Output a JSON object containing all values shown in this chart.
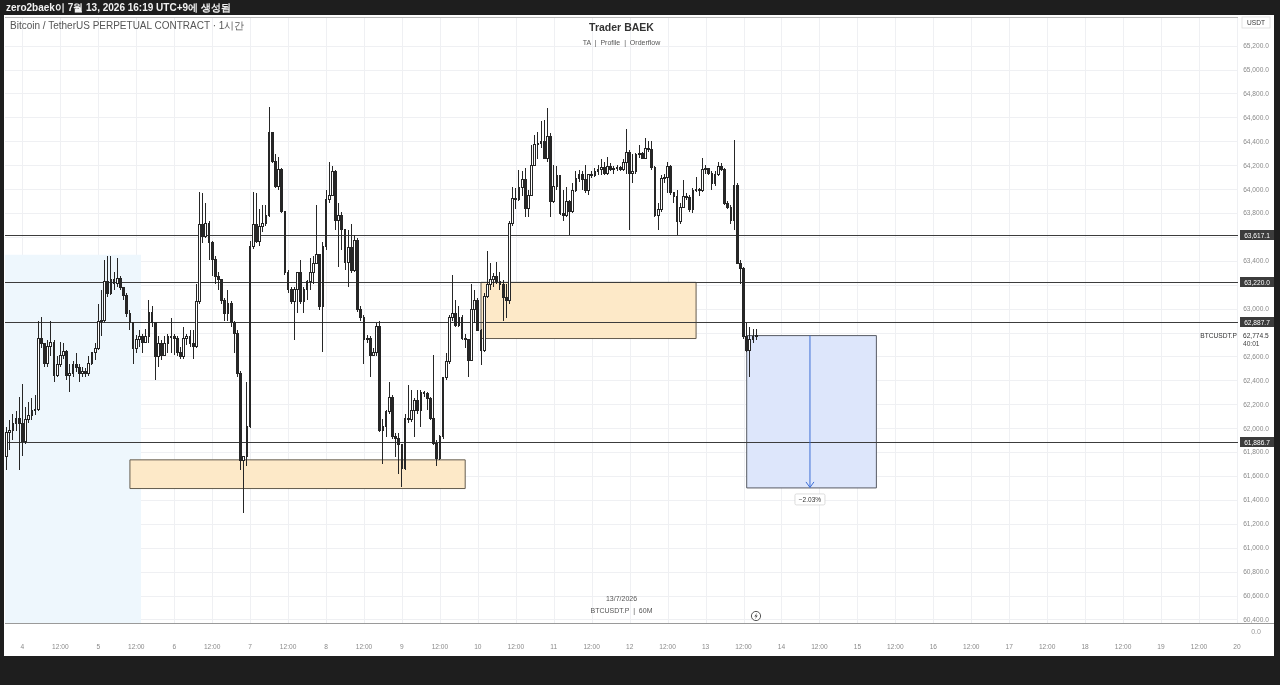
{
  "chart_data": {
    "type": "candlestick",
    "title": "Trader BAEK",
    "subtitle": "TA  |  Profile  |  Orderflow",
    "ylabel": "USDT",
    "color": "#262626",
    "grid": true,
    "xlim": [
      "2026-07-03T18:30",
      "2026-07-20T00:20"
    ],
    "ylim": [
      60370,
      65440
    ],
    "xticks": [
      {
        "value": "2026-07-04T00:00",
        "label": "4"
      },
      {
        "value": "2026-07-04T12:00",
        "label": "12:00"
      },
      {
        "value": "2026-07-05T00:00",
        "label": "5"
      },
      {
        "value": "2026-07-05T12:00",
        "label": "12:00"
      },
      {
        "value": "2026-07-06T00:00",
        "label": "6"
      },
      {
        "value": "2026-07-06T12:00",
        "label": "12:00"
      },
      {
        "value": "2026-07-07T00:00",
        "label": "7"
      },
      {
        "value": "2026-07-07T12:00",
        "label": "12:00"
      },
      {
        "value": "2026-07-08T00:00",
        "label": "8"
      },
      {
        "value": "2026-07-08T12:00",
        "label": "12:00"
      },
      {
        "value": "2026-07-09T00:00",
        "label": "9"
      },
      {
        "value": "2026-07-09T12:00",
        "label": "12:00"
      },
      {
        "value": "2026-07-10T00:00",
        "label": "10"
      },
      {
        "value": "2026-07-10T12:00",
        "label": "12:00"
      },
      {
        "value": "2026-07-11T00:00",
        "label": "11"
      },
      {
        "value": "2026-07-11T12:00",
        "label": "12:00"
      },
      {
        "value": "2026-07-12T00:00",
        "label": "12"
      },
      {
        "value": "2026-07-12T12:00",
        "label": "12:00"
      },
      {
        "value": "2026-07-13T00:00",
        "label": "13"
      },
      {
        "value": "2026-07-13T12:00",
        "label": "12:00"
      },
      {
        "value": "2026-07-14T00:00",
        "label": "14"
      },
      {
        "value": "2026-07-14T12:00",
        "label": "12:00"
      },
      {
        "value": "2026-07-15T00:00",
        "label": "15"
      },
      {
        "value": "2026-07-15T12:00",
        "label": "12:00"
      },
      {
        "value": "2026-07-16T00:00",
        "label": "16"
      },
      {
        "value": "2026-07-16T12:00",
        "label": "12:00"
      },
      {
        "value": "2026-07-17T00:00",
        "label": "17"
      },
      {
        "value": "2026-07-17T12:00",
        "label": "12:00"
      },
      {
        "value": "2026-07-18T00:00",
        "label": "18"
      },
      {
        "value": "2026-07-18T12:00",
        "label": "12:00"
      },
      {
        "value": "2026-07-19T00:00",
        "label": "19"
      },
      {
        "value": "2026-07-19T12:00",
        "label": "12:00"
      },
      {
        "value": "2026-07-20T00:00",
        "label": "20"
      }
    ],
    "yticks": [
      {
        "value": 60400,
        "label": "60,400.0"
      },
      {
        "value": 60600,
        "label": "60,600.0"
      },
      {
        "value": 60800,
        "label": "60,800.0"
      },
      {
        "value": 61000,
        "label": "61,000.0"
      },
      {
        "value": 61200,
        "label": "61,200.0"
      },
      {
        "value": 61400,
        "label": "61,400.0"
      },
      {
        "value": 61600,
        "label": "61,600.0"
      },
      {
        "value": 61800,
        "label": "61,800.0"
      },
      {
        "value": 62000,
        "label": "62,000.0"
      },
      {
        "value": 62200,
        "label": "62,200.0"
      },
      {
        "value": 62400,
        "label": "62,400.0"
      },
      {
        "value": 62600,
        "label": "62,600.0"
      },
      {
        "value": 62800,
        "label": null
      },
      {
        "value": 63000,
        "label": "63,000.0"
      },
      {
        "value": 63200,
        "label": null
      },
      {
        "value": 63400,
        "label": "63,400.0"
      },
      {
        "value": 63600,
        "label": null
      },
      {
        "value": 63800,
        "label": "63,800.0"
      },
      {
        "value": 64000,
        "label": "64,000.0"
      },
      {
        "value": 64200,
        "label": "64,200.0"
      },
      {
        "value": 64400,
        "label": "64,400.0"
      },
      {
        "value": 64600,
        "label": "64,600.0"
      },
      {
        "value": 64800,
        "label": "64,800.0"
      },
      {
        "value": 65000,
        "label": "65,000.0"
      },
      {
        "value": 65200,
        "label": "65,200.0"
      }
    ],
    "ref_lines": [
      {
        "axis": "y",
        "value": 63617.1,
        "label": "63,617.1",
        "color": "#3c3c3c"
      },
      {
        "axis": "y",
        "value": 63220.0,
        "label": "63,220.0",
        "color": "#3c3c3c"
      },
      {
        "axis": "y",
        "value": 62887.7,
        "label": "62,887.7",
        "color": "#3c3c3c"
      },
      {
        "axis": "y",
        "value": 61886.7,
        "label": "61,886.7",
        "color": "#3c3c3c"
      }
    ],
    "series": [
      {
        "type": "line",
        "x": [
          "2026-07-03T18:30",
          "2026-07-05T13:30"
        ],
        "values": [
          null,
          null
        ],
        "lower": [
          60370,
          60370
        ],
        "upper": [
          63450,
          63450
        ],
        "color": "#eef7fd"
      },
      {
        "type": "line",
        "x": [
          "2026-07-05T10:00",
          "2026-07-09T20:00"
        ],
        "values": [
          null,
          null
        ],
        "lower": [
          61495,
          61495
        ],
        "upper": [
          61735,
          61735
        ],
        "color": "#fde9c8",
        "line_style": "solid"
      },
      {
        "type": "line",
        "x": [
          "2026-07-10T01:00",
          "2026-07-12T21:00"
        ],
        "values": [
          null,
          null
        ],
        "lower": [
          62750,
          62750
        ],
        "upper": [
          63220,
          63220
        ],
        "color": "#fde9c8",
        "line_style": "solid"
      },
      {
        "type": "line",
        "x": [
          "2026-07-13T13:00",
          "2026-07-15T06:00"
        ],
        "values": [
          null,
          null
        ],
        "lower": [
          61500,
          61500
        ],
        "upper": [
          62774.5,
          62774.5
        ],
        "color": "#dde6fb",
        "line_style": "solid"
      }
    ],
    "annotations": [
      "zero2baek이 7월 13, 2026 16:19 UTC+9에 생성됨",
      "Bitcoin / TetherUS PERPETUAL CONTRACT · 1시간",
      "13/7/2026",
      "BTCUSDT.P  |  60M",
      "0.0",
      "BTCUSDT.P",
      "62,774.5",
      "40:01",
      {
        "text": "−2.03%",
        "x": "2026-07-14T09:00",
        "y": 61500
      }
    ],
    "x": [
      "2026-07-03T19:00",
      "2026-07-03T20:00",
      "2026-07-03T21:00",
      "2026-07-03T22:00",
      "2026-07-03T23:00",
      "2026-07-04T00:00",
      "2026-07-04T01:00",
      "2026-07-04T02:00",
      "2026-07-04T03:00",
      "2026-07-04T04:00",
      "2026-07-04T05:00",
      "2026-07-04T06:00",
      "2026-07-04T07:00",
      "2026-07-04T08:00",
      "2026-07-04T09:00",
      "2026-07-04T10:00",
      "2026-07-04T11:00",
      "2026-07-04T12:00",
      "2026-07-04T13:00",
      "2026-07-04T14:00",
      "2026-07-04T15:00",
      "2026-07-04T16:00",
      "2026-07-04T17:00",
      "2026-07-04T18:00",
      "2026-07-04T19:00",
      "2026-07-04T20:00",
      "2026-07-04T21:00",
      "2026-07-04T22:00",
      "2026-07-04T23:00",
      "2026-07-05T00:00",
      "2026-07-05T01:00",
      "2026-07-05T02:00",
      "2026-07-05T03:00",
      "2026-07-05T04:00",
      "2026-07-05T05:00",
      "2026-07-05T06:00",
      "2026-07-05T07:00",
      "2026-07-05T08:00",
      "2026-07-05T09:00",
      "2026-07-05T10:00",
      "2026-07-05T11:00",
      "2026-07-05T12:00",
      "2026-07-05T13:00",
      "2026-07-05T14:00",
      "2026-07-05T15:00",
      "2026-07-05T16:00",
      "2026-07-05T17:00",
      "2026-07-05T18:00",
      "2026-07-05T19:00",
      "2026-07-05T20:00",
      "2026-07-05T21:00",
      "2026-07-05T22:00",
      "2026-07-05T23:00",
      "2026-07-06T00:00",
      "2026-07-06T01:00",
      "2026-07-06T02:00",
      "2026-07-06T03:00",
      "2026-07-06T04:00",
      "2026-07-06T05:00",
      "2026-07-06T06:00",
      "2026-07-06T07:00",
      "2026-07-06T08:00",
      "2026-07-06T09:00",
      "2026-07-06T10:00",
      "2026-07-06T11:00",
      "2026-07-06T12:00",
      "2026-07-06T13:00",
      "2026-07-06T14:00",
      "2026-07-06T15:00",
      "2026-07-06T16:00",
      "2026-07-06T17:00",
      "2026-07-06T18:00",
      "2026-07-06T19:00",
      "2026-07-06T20:00",
      "2026-07-06T21:00",
      "2026-07-06T22:00",
      "2026-07-06T23:00",
      "2026-07-07T00:00",
      "2026-07-07T01:00",
      "2026-07-07T02:00",
      "2026-07-07T03:00",
      "2026-07-07T04:00",
      "2026-07-07T05:00",
      "2026-07-07T06:00",
      "2026-07-07T07:00",
      "2026-07-07T08:00",
      "2026-07-07T09:00",
      "2026-07-07T10:00",
      "2026-07-07T11:00",
      "2026-07-07T12:00",
      "2026-07-07T13:00",
      "2026-07-07T14:00",
      "2026-07-07T15:00",
      "2026-07-07T16:00",
      "2026-07-07T17:00",
      "2026-07-07T18:00",
      "2026-07-07T19:00",
      "2026-07-07T20:00",
      "2026-07-07T21:00",
      "2026-07-07T22:00",
      "2026-07-07T23:00",
      "2026-07-08T00:00",
      "2026-07-08T01:00",
      "2026-07-08T02:00",
      "2026-07-08T03:00",
      "2026-07-08T04:00",
      "2026-07-08T05:00",
      "2026-07-08T06:00",
      "2026-07-08T07:00",
      "2026-07-08T08:00",
      "2026-07-08T09:00",
      "2026-07-08T10:00",
      "2026-07-08T11:00",
      "2026-07-08T12:00",
      "2026-07-08T13:00",
      "2026-07-08T14:00",
      "2026-07-08T15:00",
      "2026-07-08T16:00",
      "2026-07-08T17:00",
      "2026-07-08T18:00",
      "2026-07-08T19:00",
      "2026-07-08T20:00",
      "2026-07-08T21:00",
      "2026-07-08T22:00",
      "2026-07-08T23:00",
      "2026-07-09T00:00",
      "2026-07-09T01:00",
      "2026-07-09T02:00",
      "2026-07-09T03:00",
      "2026-07-09T04:00",
      "2026-07-09T05:00",
      "2026-07-09T06:00",
      "2026-07-09T07:00",
      "2026-07-09T08:00",
      "2026-07-09T09:00",
      "2026-07-09T10:00",
      "2026-07-09T11:00",
      "2026-07-09T12:00",
      "2026-07-09T13:00",
      "2026-07-09T14:00",
      "2026-07-09T15:00",
      "2026-07-09T16:00",
      "2026-07-09T17:00",
      "2026-07-09T18:00",
      "2026-07-09T19:00",
      "2026-07-09T20:00",
      "2026-07-09T21:00",
      "2026-07-09T22:00",
      "2026-07-09T23:00",
      "2026-07-10T00:00",
      "2026-07-10T01:00",
      "2026-07-10T02:00",
      "2026-07-10T03:00",
      "2026-07-10T04:00",
      "2026-07-10T05:00",
      "2026-07-10T06:00",
      "2026-07-10T07:00",
      "2026-07-10T08:00",
      "2026-07-10T09:00",
      "2026-07-10T10:00",
      "2026-07-10T11:00",
      "2026-07-10T12:00",
      "2026-07-10T13:00",
      "2026-07-10T14:00",
      "2026-07-10T15:00",
      "2026-07-10T16:00",
      "2026-07-10T17:00",
      "2026-07-10T18:00",
      "2026-07-10T19:00",
      "2026-07-10T20:00",
      "2026-07-10T21:00",
      "2026-07-10T22:00",
      "2026-07-10T23:00",
      "2026-07-11T00:00",
      "2026-07-11T01:00",
      "2026-07-11T02:00",
      "2026-07-11T03:00",
      "2026-07-11T04:00",
      "2026-07-11T05:00",
      "2026-07-11T06:00",
      "2026-07-11T07:00",
      "2026-07-11T08:00",
      "2026-07-11T09:00",
      "2026-07-11T10:00",
      "2026-07-11T11:00",
      "2026-07-11T12:00",
      "2026-07-11T13:00",
      "2026-07-11T14:00",
      "2026-07-11T15:00",
      "2026-07-11T16:00",
      "2026-07-11T17:00",
      "2026-07-11T18:00",
      "2026-07-11T19:00",
      "2026-07-11T20:00",
      "2026-07-11T21:00",
      "2026-07-11T22:00",
      "2026-07-11T23:00",
      "2026-07-12T00:00",
      "2026-07-12T01:00",
      "2026-07-12T02:00",
      "2026-07-12T03:00",
      "2026-07-12T04:00",
      "2026-07-12T05:00",
      "2026-07-12T06:00",
      "2026-07-12T07:00",
      "2026-07-12T08:00",
      "2026-07-12T09:00",
      "2026-07-12T10:00",
      "2026-07-12T11:00",
      "2026-07-12T12:00",
      "2026-07-12T13:00",
      "2026-07-12T14:00",
      "2026-07-12T15:00",
      "2026-07-12T16:00",
      "2026-07-12T17:00",
      "2026-07-12T18:00",
      "2026-07-12T19:00",
      "2026-07-12T20:00",
      "2026-07-12T21:00",
      "2026-07-12T22:00",
      "2026-07-12T23:00",
      "2026-07-13T00:00",
      "2026-07-13T01:00",
      "2026-07-13T02:00",
      "2026-07-13T03:00",
      "2026-07-13T04:00",
      "2026-07-13T05:00",
      "2026-07-13T06:00",
      "2026-07-13T07:00",
      "2026-07-13T08:00",
      "2026-07-13T09:00",
      "2026-07-13T10:00",
      "2026-07-13T11:00",
      "2026-07-13T12:00",
      "2026-07-13T13:00",
      "2026-07-13T14:00",
      "2026-07-13T15:00",
      "2026-07-13T16:00"
    ],
    "ohlc": [
      [
        61760,
        62010,
        61650,
        61960
      ],
      [
        61960,
        62070,
        61820,
        61980
      ],
      [
        61980,
        62120,
        61900,
        62040
      ],
      [
        62040,
        62140,
        61980,
        62080
      ],
      [
        62080,
        62260,
        61650,
        62040
      ],
      [
        62040,
        62370,
        61770,
        61890
      ],
      [
        61890,
        62180,
        61870,
        62070
      ],
      [
        62070,
        62220,
        62040,
        62110
      ],
      [
        62110,
        62250,
        62070,
        62150
      ],
      [
        62150,
        62280,
        62110,
        62160
      ],
      [
        62160,
        62900,
        62140,
        62750
      ],
      [
        62750,
        62930,
        62670,
        62710
      ],
      [
        62710,
        62710,
        62510,
        62540
      ],
      [
        62540,
        62740,
        62510,
        62680
      ],
      [
        62680,
        62900,
        62600,
        62720
      ],
      [
        62720,
        62740,
        62390,
        62440
      ],
      [
        62440,
        62600,
        62430,
        62530
      ],
      [
        62530,
        62720,
        62510,
        62610
      ],
      [
        62610,
        62710,
        62580,
        62640
      ],
      [
        62640,
        62650,
        62400,
        62440
      ],
      [
        62440,
        62540,
        62300,
        62460
      ],
      [
        62460,
        62560,
        62430,
        62530
      ],
      [
        62530,
        62630,
        62470,
        62510
      ],
      [
        62510,
        62540,
        62390,
        62460
      ],
      [
        62460,
        62510,
        62430,
        62470
      ],
      [
        62470,
        62500,
        62430,
        62460
      ],
      [
        62460,
        62600,
        62440,
        62540
      ],
      [
        62540,
        62640,
        62530,
        62630
      ],
      [
        62630,
        62710,
        62570,
        62670
      ],
      [
        62670,
        63040,
        62650,
        62890
      ],
      [
        62890,
        63160,
        62770,
        62900
      ],
      [
        62900,
        63410,
        62880,
        63230
      ],
      [
        63230,
        63440,
        63100,
        63130
      ],
      [
        63130,
        63440,
        63110,
        63240
      ],
      [
        63240,
        63310,
        63160,
        63210
      ],
      [
        63210,
        63420,
        63180,
        63250
      ],
      [
        63250,
        63270,
        63160,
        63180
      ],
      [
        63180,
        63180,
        63070,
        63110
      ],
      [
        63110,
        63130,
        62930,
        62960
      ],
      [
        62960,
        62990,
        62820,
        62880
      ],
      [
        62880,
        62880,
        62540,
        62670
      ],
      [
        62670,
        62780,
        62630,
        62740
      ],
      [
        62740,
        62820,
        62680,
        62770
      ],
      [
        62770,
        62790,
        62630,
        62720
      ],
      [
        62720,
        62830,
        62710,
        62770
      ],
      [
        62770,
        63070,
        62710,
        62970
      ],
      [
        62970,
        63020,
        62850,
        62880
      ],
      [
        62880,
        62890,
        62400,
        62600
      ],
      [
        62600,
        62770,
        62510,
        62710
      ],
      [
        62710,
        62740,
        62570,
        62610
      ],
      [
        62610,
        62770,
        62600,
        62710
      ],
      [
        62710,
        62790,
        62630,
        62770
      ],
      [
        62770,
        62920,
        62630,
        62770
      ],
      [
        62770,
        62790,
        62610,
        62750
      ],
      [
        62750,
        62770,
        62600,
        62630
      ],
      [
        62630,
        62680,
        62580,
        62600
      ],
      [
        62600,
        62850,
        62580,
        62750
      ],
      [
        62750,
        62790,
        62700,
        62770
      ],
      [
        62770,
        62820,
        62680,
        62710
      ],
      [
        62710,
        62820,
        62580,
        62680
      ],
      [
        62680,
        63210,
        62670,
        63060
      ],
      [
        63060,
        63980,
        63040,
        63700
      ],
      [
        63700,
        63970,
        63550,
        63600
      ],
      [
        63600,
        63880,
        63590,
        63710
      ],
      [
        63710,
        63730,
        63410,
        63550
      ],
      [
        63550,
        63570,
        63270,
        63410
      ],
      [
        63410,
        63440,
        63210,
        63270
      ],
      [
        63270,
        63310,
        63160,
        63240
      ],
      [
        63240,
        63250,
        63040,
        63070
      ],
      [
        63070,
        63090,
        62900,
        62960
      ],
      [
        62960,
        63160,
        62900,
        63040
      ],
      [
        63040,
        63060,
        62850,
        62880
      ],
      [
        62880,
        62900,
        62630,
        62790
      ],
      [
        62790,
        62820,
        62430,
        62460
      ],
      [
        62460,
        62480,
        61650,
        61730
      ],
      [
        61730,
        61760,
        61290,
        61760
      ],
      [
        61760,
        62390,
        61680,
        62010
      ],
      [
        62010,
        63570,
        62000,
        63520
      ],
      [
        63520,
        63980,
        63500,
        63700
      ],
      [
        63700,
        63970,
        63550,
        63560
      ],
      [
        63560,
        63830,
        63520,
        63690
      ],
      [
        63690,
        63870,
        63640,
        63710
      ],
      [
        63710,
        63870,
        63690,
        63780
      ],
      [
        63780,
        64690,
        63770,
        64470
      ],
      [
        64470,
        64480,
        64220,
        64230
      ],
      [
        64230,
        64290,
        64010,
        64020
      ],
      [
        64020,
        64270,
        63990,
        64160
      ],
      [
        64160,
        64180,
        63800,
        63810
      ],
      [
        63810,
        63820,
        63280,
        63300
      ],
      [
        63300,
        63320,
        63130,
        63160
      ],
      [
        63160,
        63180,
        63040,
        63060
      ],
      [
        63060,
        63180,
        62740,
        63160
      ],
      [
        63160,
        63310,
        62960,
        63300
      ],
      [
        63300,
        63410,
        63040,
        63060
      ],
      [
        63060,
        63180,
        62960,
        63160
      ],
      [
        63160,
        63240,
        63070,
        63230
      ],
      [
        63230,
        63420,
        63160,
        63300
      ],
      [
        63300,
        63440,
        63210,
        63380
      ],
      [
        63380,
        63870,
        63370,
        63450
      ],
      [
        63450,
        63460,
        62990,
        63020
      ],
      [
        63020,
        63560,
        62640,
        63520
      ],
      [
        63520,
        63990,
        63490,
        63910
      ],
      [
        63910,
        64230,
        63880,
        63950
      ],
      [
        63950,
        64190,
        63940,
        64150
      ],
      [
        64150,
        64160,
        63660,
        63740
      ],
      [
        63740,
        63880,
        63350,
        63780
      ],
      [
        63780,
        63810,
        63490,
        63660
      ],
      [
        63660,
        63670,
        63320,
        63390
      ],
      [
        63390,
        63660,
        63180,
        63510
      ],
      [
        63510,
        63710,
        63300,
        63320
      ],
      [
        63320,
        63620,
        63310,
        63570
      ],
      [
        63570,
        63590,
        62970,
        62990
      ],
      [
        62990,
        63020,
        62900,
        62930
      ],
      [
        62930,
        62950,
        62540,
        62740
      ],
      [
        62740,
        62780,
        62710,
        62750
      ],
      [
        62750,
        62770,
        62430,
        62610
      ],
      [
        62610,
        62670,
        62600,
        62630
      ],
      [
        62630,
        62880,
        62600,
        62850
      ],
      [
        62850,
        62900,
        61970,
        61980
      ],
      [
        61980,
        62080,
        61700,
        62010
      ],
      [
        62010,
        62150,
        61930,
        62140
      ],
      [
        62140,
        62390,
        62120,
        62260
      ],
      [
        62260,
        62280,
        61910,
        61930
      ],
      [
        61930,
        61960,
        61760,
        61910
      ],
      [
        61910,
        61960,
        61620,
        61860
      ],
      [
        61860,
        61870,
        61510,
        61660
      ],
      [
        61660,
        62120,
        61650,
        62080
      ],
      [
        62080,
        62360,
        62040,
        62070
      ],
      [
        62070,
        62320,
        62050,
        62150
      ],
      [
        62150,
        62250,
        61930,
        62230
      ],
      [
        62230,
        62320,
        62120,
        62150
      ],
      [
        62150,
        62320,
        62010,
        62300
      ],
      [
        62300,
        62310,
        62260,
        62290
      ],
      [
        62290,
        62300,
        62150,
        62250
      ],
      [
        62250,
        62260,
        62070,
        62080
      ],
      [
        62080,
        62610,
        61860,
        61870
      ],
      [
        61870,
        61900,
        61680,
        61750
      ],
      [
        61750,
        61940,
        61730,
        61930
      ],
      [
        61930,
        62430,
        61910,
        62420
      ],
      [
        62420,
        62630,
        62400,
        62560
      ],
      [
        62560,
        62950,
        62540,
        62930
      ],
      [
        62930,
        63280,
        62900,
        62960
      ],
      [
        62960,
        63070,
        62850,
        62860
      ],
      [
        62860,
        63020,
        62850,
        62930
      ],
      [
        62930,
        62950,
        62740,
        62750
      ],
      [
        62750,
        62790,
        62670,
        62740
      ],
      [
        62740,
        62750,
        62430,
        62570
      ],
      [
        62570,
        63210,
        62560,
        62990
      ],
      [
        62990,
        63160,
        62880,
        63070
      ],
      [
        63070,
        63090,
        62810,
        62820
      ],
      [
        62820,
        62830,
        62530,
        62650
      ],
      [
        62650,
        63130,
        62640,
        63100
      ],
      [
        63100,
        63480,
        63090,
        63200
      ],
      [
        63200,
        63380,
        63160,
        63240
      ],
      [
        63240,
        63300,
        63180,
        63270
      ],
      [
        63270,
        63390,
        63210,
        63230
      ],
      [
        63230,
        63310,
        63160,
        63200
      ],
      [
        63200,
        63240,
        62900,
        63090
      ],
      [
        63090,
        63210,
        62920,
        63070
      ],
      [
        63070,
        63730,
        63040,
        63710
      ],
      [
        63710,
        64020,
        63690,
        63920
      ],
      [
        63920,
        64010,
        63830,
        63910
      ],
      [
        63910,
        64160,
        63900,
        64010
      ],
      [
        64010,
        64150,
        63940,
        64080
      ],
      [
        64080,
        64180,
        63770,
        63840
      ],
      [
        63840,
        63990,
        63770,
        63950
      ],
      [
        63950,
        64370,
        63940,
        64200
      ],
      [
        64200,
        64450,
        64190,
        64370
      ],
      [
        64370,
        64480,
        64250,
        64380
      ],
      [
        64380,
        64570,
        64340,
        64400
      ],
      [
        64400,
        64580,
        64250,
        64260
      ],
      [
        64260,
        64680,
        64230,
        64440
      ],
      [
        64440,
        64470,
        63770,
        63900
      ],
      [
        63900,
        64200,
        63880,
        64020
      ],
      [
        64020,
        64190,
        63990,
        64110
      ],
      [
        64110,
        64120,
        63780,
        63800
      ],
      [
        63800,
        63990,
        63730,
        63780
      ],
      [
        63780,
        64020,
        63770,
        63900
      ],
      [
        63900,
        63910,
        63620,
        63810
      ],
      [
        63810,
        64050,
        63800,
        63990
      ],
      [
        63990,
        64150,
        63980,
        64090
      ],
      [
        64090,
        64160,
        64060,
        64120
      ],
      [
        64120,
        64150,
        63990,
        64080
      ],
      [
        64080,
        64200,
        63970,
        63990
      ],
      [
        63990,
        64130,
        63950,
        64120
      ],
      [
        64120,
        64150,
        64090,
        64110
      ],
      [
        64110,
        64180,
        64100,
        64150
      ],
      [
        64150,
        64200,
        64120,
        64160
      ],
      [
        64160,
        64250,
        64120,
        64180
      ],
      [
        64180,
        64230,
        64120,
        64130
      ],
      [
        64130,
        64270,
        64120,
        64190
      ],
      [
        64190,
        64220,
        64150,
        64160
      ],
      [
        64160,
        64190,
        64130,
        64170
      ],
      [
        64170,
        64200,
        64150,
        64180
      ],
      [
        64180,
        64190,
        64150,
        64160
      ],
      [
        64160,
        64250,
        64150,
        64220
      ],
      [
        64220,
        64500,
        64130,
        64310
      ],
      [
        64310,
        64330,
        63660,
        64130
      ],
      [
        64130,
        64290,
        64050,
        64150
      ],
      [
        64150,
        64300,
        64130,
        64290
      ],
      [
        64290,
        64370,
        64260,
        64300
      ],
      [
        64300,
        64310,
        64250,
        64260
      ],
      [
        64260,
        64430,
        64250,
        64340
      ],
      [
        64340,
        64400,
        64310,
        64330
      ],
      [
        64330,
        64400,
        64160,
        64180
      ],
      [
        64180,
        64190,
        63770,
        63780
      ],
      [
        63780,
        63880,
        63660,
        63830
      ],
      [
        63830,
        64120,
        63810,
        64090
      ],
      [
        64090,
        64130,
        64050,
        64100
      ],
      [
        64100,
        64230,
        63970,
        64190
      ],
      [
        64190,
        64200,
        63950,
        63970
      ],
      [
        63970,
        63980,
        63880,
        63940
      ],
      [
        63940,
        63990,
        63620,
        63730
      ],
      [
        63730,
        63880,
        63710,
        63850
      ],
      [
        63850,
        64080,
        63840,
        63940
      ],
      [
        63940,
        63970,
        63910,
        63930
      ],
      [
        63930,
        63950,
        63810,
        63830
      ],
      [
        63830,
        64010,
        63800,
        63990
      ],
      [
        63990,
        64100,
        63980,
        64000
      ],
      [
        64000,
        64010,
        63940,
        63990
      ],
      [
        63990,
        64260,
        63980,
        64160
      ],
      [
        64160,
        64200,
        64130,
        64170
      ],
      [
        64170,
        64180,
        64120,
        64130
      ],
      [
        64130,
        64150,
        63990,
        64050
      ],
      [
        64050,
        64150,
        64030,
        64120
      ],
      [
        64120,
        64230,
        64110,
        64190
      ],
      [
        64190,
        64220,
        64150,
        64160
      ],
      [
        64160,
        64180,
        63870,
        63880
      ],
      [
        63880,
        63900,
        63830,
        63850
      ],
      [
        63850,
        63870,
        63710,
        63740
      ],
      [
        63740,
        64410,
        63660,
        64030
      ],
      [
        64030,
        64050,
        63370,
        63380
      ],
      [
        63380,
        63410,
        63210,
        63340
      ],
      [
        63340,
        63350,
        62750,
        62770
      ],
      [
        62770,
        62880,
        62640,
        62650
      ],
      [
        62650,
        62850,
        62430,
        62740
      ],
      [
        62740,
        62830,
        62710,
        62770
      ],
      [
        62770,
        62830,
        62740,
        62774.5
      ]
    ]
  }
}
